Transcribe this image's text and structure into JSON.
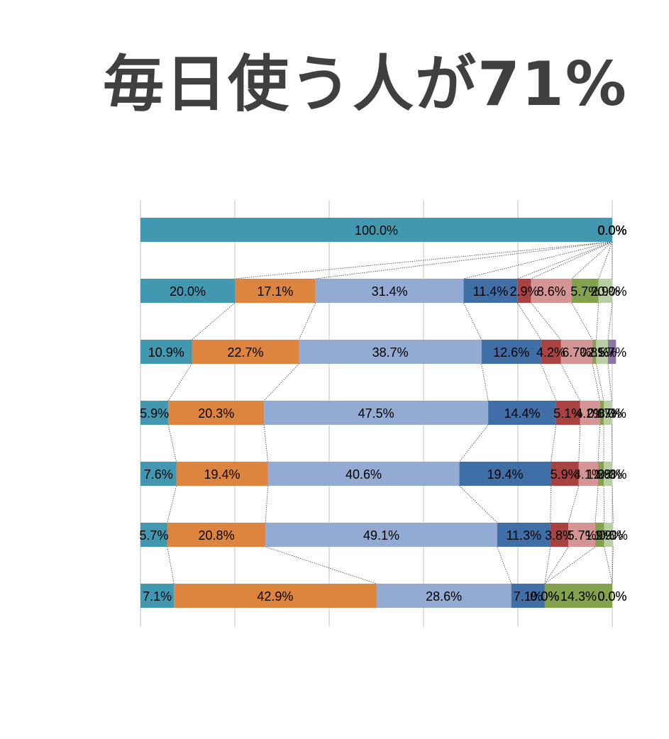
{
  "title": "毎日使う人が71%",
  "chart_data": {
    "type": "bar",
    "stacked": "percent",
    "orientation": "horizontal",
    "title": "毎日使う人が71%",
    "xlabel": "",
    "ylabel": "",
    "xlim": [
      0,
      100
    ],
    "grid": true,
    "legend": "none",
    "colors": [
      "#4198B0",
      "#DD843E",
      "#93AAD2",
      "#3F6FA6",
      "#A84342",
      "#D59594",
      "#84A24B",
      "#B9CFA3",
      "#8E72A8"
    ],
    "rows": [
      {
        "values": [
          100.0,
          0.0,
          0.0,
          0.0,
          0.0,
          0.0,
          0.0,
          0.0,
          0.0
        ],
        "labels": [
          "100.0%",
          "0.0%",
          "0.0%",
          "0.0%",
          "0.0%",
          "0.0%",
          "0.0%",
          "0.0%",
          "0.0%"
        ]
      },
      {
        "values": [
          20.0,
          17.1,
          31.4,
          11.4,
          2.9,
          8.6,
          5.7,
          2.9,
          0.0
        ],
        "labels": [
          "20.0%",
          "17.1%",
          "31.4%",
          "11.4%",
          "2.9%",
          "8.6%",
          "5.7%",
          "2.9%",
          "0.0%"
        ]
      },
      {
        "values": [
          10.9,
          22.7,
          38.7,
          12.6,
          4.2,
          6.7,
          0.8,
          2.5,
          1.7
        ],
        "labels": [
          "10.9%",
          "22.7%",
          "38.7%",
          "12.6%",
          "4.2%",
          "6.7%",
          "0.8%",
          "2.5%",
          "1.7%"
        ]
      },
      {
        "values": [
          5.9,
          20.3,
          47.5,
          14.4,
          5.1,
          4.2,
          0.8,
          1.7,
          0.0
        ],
        "labels": [
          "5.9%",
          "20.3%",
          "47.5%",
          "14.4%",
          "5.1%",
          "4.2%",
          "0.8%",
          "1.7%",
          "0.0%"
        ]
      },
      {
        "values": [
          7.6,
          19.4,
          40.6,
          19.4,
          5.9,
          4.1,
          1.2,
          1.8,
          0.0
        ],
        "labels": [
          "7.6%",
          "19.4%",
          "40.6%",
          "19.4%",
          "5.9%",
          "4.1%",
          "1.2%",
          "1.8%",
          "0.0%"
        ]
      },
      {
        "values": [
          5.7,
          20.8,
          49.1,
          11.3,
          3.8,
          5.7,
          1.9,
          1.9,
          0.0
        ],
        "labels": [
          "5.7%",
          "20.8%",
          "49.1%",
          "11.3%",
          "3.8%",
          "5.7%",
          "1.9%",
          "1.9%",
          "0.0%"
        ]
      },
      {
        "values": [
          7.1,
          42.9,
          28.6,
          7.1,
          0.0,
          0.0,
          14.3,
          0.0,
          0.0
        ],
        "labels": [
          "7.1%",
          "42.9%",
          "28.6%",
          "7.1%",
          "0.0%",
          "0.0%",
          "14.3%",
          "0.0%",
          "0.0%"
        ]
      }
    ]
  }
}
